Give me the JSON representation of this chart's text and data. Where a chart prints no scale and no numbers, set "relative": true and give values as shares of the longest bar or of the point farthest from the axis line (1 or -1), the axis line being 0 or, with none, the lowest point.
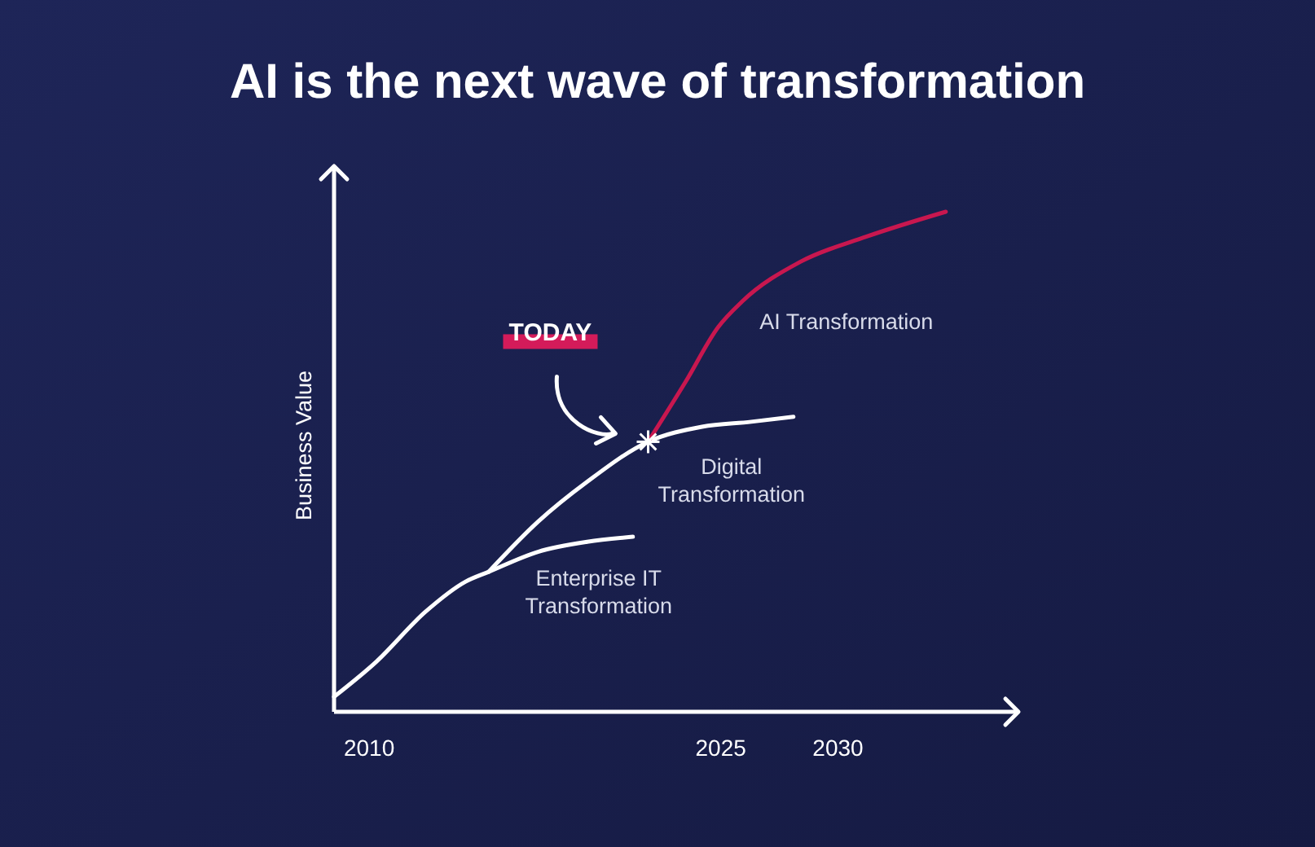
{
  "chart_data": {
    "type": "line",
    "title": "AI is the next wave of transformation",
    "ylabel": "Business Value",
    "relative": true,
    "xlim": [
      2008.5,
      2037.7
    ],
    "xticks": [
      2010,
      2025,
      2030
    ],
    "series": [
      {
        "name": "Enterprise IT Transformation",
        "color": "#ffffff",
        "x": [
          2008.5,
          2010.3,
          2012.4,
          2014.1,
          2015.1,
          2017.2,
          2019.3,
          2021.25
        ],
        "values": [
          0.03,
          0.1,
          0.2,
          0.26,
          0.28,
          0.32,
          0.34,
          0.35
        ]
      },
      {
        "name": "Digital Transformation",
        "color": "#ffffff",
        "x": [
          2015.1,
          2017.2,
          2019.3,
          2021.9,
          2024.2,
          2026.3,
          2028.1
        ],
        "values": [
          0.28,
          0.38,
          0.46,
          0.54,
          0.57,
          0.58,
          0.59
        ]
      },
      {
        "name": "AI Transformation",
        "color": "#c8174f",
        "x": [
          2021.9,
          2023.5,
          2024.9,
          2025.9,
          2028.4,
          2031.2,
          2034.6
        ],
        "values": [
          0.54,
          0.66,
          0.77,
          0.82,
          0.9,
          0.95,
          1.0
        ]
      }
    ],
    "annotations": [
      "TODAY"
    ],
    "legend": false
  }
}
